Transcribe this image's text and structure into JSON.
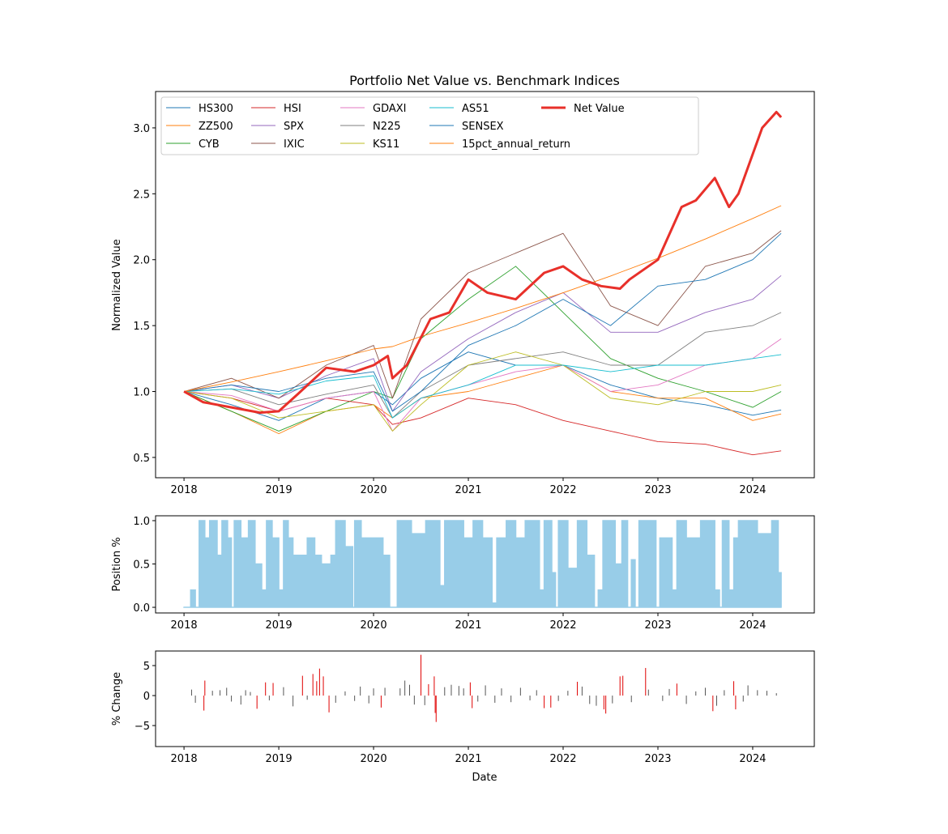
{
  "chart_data": [
    {
      "type": "line",
      "title": "Portfolio Net Value vs. Benchmark Indices",
      "xlabel": "",
      "ylabel": "Normalized Value",
      "xlim": [
        2017.7,
        2024.65
      ],
      "ylim": [
        0.346,
        3.276
      ],
      "xticks": [
        2018,
        2019,
        2020,
        2021,
        2022,
        2023,
        2024
      ],
      "xtick_labels": [
        "2018",
        "2019",
        "2020",
        "2021",
        "2022",
        "2023",
        "2024"
      ],
      "yticks": [
        0.5,
        1.0,
        1.5,
        2.0,
        2.5,
        3.0
      ],
      "ytick_labels": [
        "0.5",
        "1.0",
        "1.5",
        "2.0",
        "2.5",
        "3.0"
      ],
      "grid": false,
      "legend_position": "top-left",
      "legend_columns": 5,
      "x": [
        2018.0,
        2018.5,
        2019.0,
        2019.5,
        2020.0,
        2020.2,
        2020.5,
        2021.0,
        2021.5,
        2022.0,
        2022.5,
        2023.0,
        2023.5,
        2024.0,
        2024.3
      ],
      "series": [
        {
          "name": "HS300",
          "color": "#1f77b4",
          "values": [
            1.0,
            0.9,
            0.78,
            0.95,
            1.0,
            0.9,
            1.1,
            1.3,
            1.2,
            1.2,
            1.05,
            0.95,
            0.9,
            0.82,
            0.86
          ]
        },
        {
          "name": "ZZ500",
          "color": "#ff7f0e",
          "values": [
            1.0,
            0.85,
            0.68,
            0.85,
            0.9,
            0.8,
            0.95,
            1.0,
            1.1,
            1.2,
            1.0,
            0.95,
            0.95,
            0.78,
            0.83
          ]
        },
        {
          "name": "CYB",
          "color": "#2ca02c",
          "values": [
            1.0,
            0.85,
            0.7,
            0.85,
            1.0,
            0.95,
            1.4,
            1.7,
            1.95,
            1.6,
            1.25,
            1.1,
            1.0,
            0.88,
            1.0
          ]
        },
        {
          "name": "HSI",
          "color": "#d62728",
          "values": [
            1.0,
            0.95,
            0.85,
            0.95,
            0.9,
            0.75,
            0.8,
            0.95,
            0.9,
            0.78,
            0.7,
            0.62,
            0.6,
            0.52,
            0.55
          ]
        },
        {
          "name": "SPX",
          "color": "#9467bd",
          "values": [
            1.0,
            1.05,
            0.95,
            1.12,
            1.25,
            0.85,
            1.15,
            1.4,
            1.6,
            1.75,
            1.45,
            1.45,
            1.6,
            1.7,
            1.88
          ]
        },
        {
          "name": "IXIC",
          "color": "#8c564b",
          "values": [
            1.0,
            1.1,
            0.95,
            1.2,
            1.35,
            0.95,
            1.55,
            1.9,
            2.05,
            2.2,
            1.65,
            1.5,
            1.95,
            2.05,
            2.22
          ]
        },
        {
          "name": "GDAXI",
          "color": "#e377c2",
          "values": [
            1.0,
            0.97,
            0.85,
            0.95,
            1.0,
            0.7,
            0.95,
            1.05,
            1.15,
            1.2,
            1.0,
            1.05,
            1.2,
            1.25,
            1.4
          ]
        },
        {
          "name": "N225",
          "color": "#7f7f7f",
          "values": [
            1.0,
            1.02,
            0.9,
            0.98,
            1.05,
            0.8,
            1.0,
            1.2,
            1.25,
            1.3,
            1.2,
            1.2,
            1.45,
            1.5,
            1.6
          ]
        },
        {
          "name": "KS11",
          "color": "#bcbd22",
          "values": [
            1.0,
            0.95,
            0.8,
            0.85,
            0.9,
            0.7,
            0.9,
            1.2,
            1.3,
            1.2,
            0.95,
            0.9,
            1.0,
            1.0,
            1.05
          ]
        },
        {
          "name": "AS51",
          "color": "#17becf",
          "values": [
            1.0,
            1.02,
            0.98,
            1.08,
            1.12,
            0.8,
            0.95,
            1.05,
            1.2,
            1.2,
            1.15,
            1.2,
            1.2,
            1.25,
            1.28
          ]
        },
        {
          "name": "SENSEX",
          "color": "#1f77b4",
          "values": [
            1.0,
            1.05,
            1.0,
            1.1,
            1.15,
            0.85,
            1.0,
            1.35,
            1.5,
            1.7,
            1.5,
            1.8,
            1.85,
            2.0,
            2.2
          ]
        },
        {
          "name": "15pct_annual_return",
          "color": "#ff7f0e",
          "values": [
            1.0,
            1.072,
            1.15,
            1.233,
            1.3225,
            1.341,
            1.418,
            1.521,
            1.631,
            1.749,
            1.876,
            2.011,
            2.157,
            2.313,
            2.41
          ]
        },
        {
          "name": "Net Value",
          "color": "#e8302a",
          "bold": true,
          "x": [
            2018.0,
            2018.2,
            2018.5,
            2018.8,
            2019.0,
            2019.2,
            2019.5,
            2019.8,
            2020.0,
            2020.15,
            2020.2,
            2020.35,
            2020.6,
            2020.8,
            2021.0,
            2021.2,
            2021.5,
            2021.8,
            2022.0,
            2022.2,
            2022.4,
            2022.6,
            2022.7,
            2023.0,
            2023.25,
            2023.4,
            2023.6,
            2023.75,
            2023.85,
            2024.1,
            2024.25,
            2024.3
          ],
          "values": [
            1.0,
            0.92,
            0.88,
            0.84,
            0.85,
            0.98,
            1.18,
            1.15,
            1.2,
            1.27,
            1.1,
            1.2,
            1.55,
            1.6,
            1.85,
            1.75,
            1.7,
            1.9,
            1.95,
            1.85,
            1.8,
            1.78,
            1.85,
            2.0,
            2.4,
            2.45,
            2.62,
            2.4,
            2.5,
            3.0,
            3.12,
            3.08
          ]
        }
      ]
    },
    {
      "type": "area",
      "ylabel": "Position %",
      "xlim": [
        2017.7,
        2024.65
      ],
      "ylim": [
        -0.065,
        1.056
      ],
      "yticks": [
        0.0,
        0.5,
        1.0
      ],
      "ytick_labels": [
        "0.0",
        "0.5",
        "1.0"
      ],
      "xtick_labels": [
        "2018",
        "2019",
        "2020",
        "2021",
        "2022",
        "2023",
        "2024"
      ],
      "color": "#98cde8",
      "steps": [
        [
          2018.0,
          0
        ],
        [
          2018.07,
          0.2
        ],
        [
          2018.12,
          0
        ],
        [
          2018.16,
          1.0
        ],
        [
          2018.22,
          0.8
        ],
        [
          2018.27,
          1.0
        ],
        [
          2018.35,
          0.6
        ],
        [
          2018.4,
          1.0
        ],
        [
          2018.46,
          0.8
        ],
        [
          2018.5,
          0
        ],
        [
          2018.53,
          1.0
        ],
        [
          2018.6,
          0.8
        ],
        [
          2018.68,
          1.0
        ],
        [
          2018.75,
          0.5
        ],
        [
          2018.82,
          0.2
        ],
        [
          2018.87,
          1.0
        ],
        [
          2018.93,
          0.8
        ],
        [
          2019.0,
          0.2
        ],
        [
          2019.05,
          1.0
        ],
        [
          2019.1,
          0.8
        ],
        [
          2019.15,
          0.6
        ],
        [
          2019.3,
          0.8
        ],
        [
          2019.38,
          0.6
        ],
        [
          2019.45,
          0.5
        ],
        [
          2019.55,
          0.6
        ],
        [
          2019.6,
          1.0
        ],
        [
          2019.7,
          0.7
        ],
        [
          2019.78,
          0
        ],
        [
          2019.8,
          1.0
        ],
        [
          2019.87,
          0.8
        ],
        [
          2020.1,
          0.6
        ],
        [
          2020.17,
          0
        ],
        [
          2020.25,
          1.0
        ],
        [
          2020.4,
          0.85
        ],
        [
          2020.55,
          1.0
        ],
        [
          2020.7,
          0.25
        ],
        [
          2020.75,
          1.0
        ],
        [
          2020.95,
          0.8
        ],
        [
          2021.05,
          1.0
        ],
        [
          2021.15,
          0.8
        ],
        [
          2021.25,
          0.05
        ],
        [
          2021.3,
          0.8
        ],
        [
          2021.4,
          1.0
        ],
        [
          2021.5,
          0.8
        ],
        [
          2021.6,
          1.0
        ],
        [
          2021.75,
          0.2
        ],
        [
          2021.8,
          1.0
        ],
        [
          2021.88,
          0.4
        ],
        [
          2021.92,
          0
        ],
        [
          2021.95,
          1.0
        ],
        [
          2022.05,
          0.45
        ],
        [
          2022.15,
          1.0
        ],
        [
          2022.25,
          0.6
        ],
        [
          2022.33,
          0
        ],
        [
          2022.37,
          0.2
        ],
        [
          2022.42,
          1.0
        ],
        [
          2022.55,
          0.5
        ],
        [
          2022.62,
          1.0
        ],
        [
          2022.68,
          0
        ],
        [
          2022.72,
          0.55
        ],
        [
          2022.76,
          0
        ],
        [
          2022.8,
          1.0
        ],
        [
          2022.98,
          0
        ],
        [
          2023.02,
          0.8
        ],
        [
          2023.15,
          0.2
        ],
        [
          2023.2,
          1.0
        ],
        [
          2023.3,
          0.8
        ],
        [
          2023.45,
          1.0
        ],
        [
          2023.6,
          0.2
        ],
        [
          2023.65,
          0
        ],
        [
          2023.68,
          1.0
        ],
        [
          2023.75,
          0.2
        ],
        [
          2023.8,
          0.8
        ],
        [
          2023.85,
          1.0
        ],
        [
          2024.05,
          0.85
        ],
        [
          2024.2,
          1.0
        ],
        [
          2024.27,
          0.4
        ],
        [
          2024.3,
          0
        ]
      ]
    },
    {
      "type": "bar",
      "xlabel": "Date",
      "ylabel": "% Change",
      "xlim": [
        2017.7,
        2024.65
      ],
      "ylim": [
        -8.5,
        7.43
      ],
      "yticks": [
        -5,
        0,
        5
      ],
      "ytick_labels": [
        "−5",
        "0",
        "5"
      ],
      "xtick_labels": [
        "2018",
        "2019",
        "2020",
        "2021",
        "2022",
        "2023",
        "2024"
      ],
      "normal_color": "#555555",
      "highlight_color": "#e00000",
      "bars": [
        [
          2018.08,
          1.0,
          0
        ],
        [
          2018.12,
          -1.2,
          0
        ],
        [
          2018.21,
          -2.5,
          1
        ],
        [
          2018.22,
          2.5,
          1
        ],
        [
          2018.3,
          0.8,
          0
        ],
        [
          2018.38,
          0.9,
          0
        ],
        [
          2018.45,
          1.3,
          0
        ],
        [
          2018.5,
          -1.0,
          0
        ],
        [
          2018.6,
          -1.5,
          0
        ],
        [
          2018.65,
          0.9,
          0
        ],
        [
          2018.7,
          0.6,
          0
        ],
        [
          2018.77,
          -2.2,
          1
        ],
        [
          2018.86,
          2.2,
          1
        ],
        [
          2018.9,
          -0.8,
          0
        ],
        [
          2018.94,
          2.1,
          1
        ],
        [
          2019.05,
          1.4,
          0
        ],
        [
          2019.15,
          -1.8,
          0
        ],
        [
          2019.25,
          3.3,
          1
        ],
        [
          2019.3,
          -0.7,
          0
        ],
        [
          2019.36,
          3.6,
          1
        ],
        [
          2019.4,
          2.4,
          1
        ],
        [
          2019.43,
          4.5,
          1
        ],
        [
          2019.47,
          3.2,
          1
        ],
        [
          2019.53,
          -2.8,
          1
        ],
        [
          2019.6,
          -1.2,
          0
        ],
        [
          2019.7,
          0.7,
          0
        ],
        [
          2019.8,
          -0.9,
          0
        ],
        [
          2019.86,
          1.5,
          0
        ],
        [
          2019.95,
          -1.3,
          0
        ],
        [
          2020.0,
          1.2,
          0
        ],
        [
          2020.08,
          -2.0,
          1
        ],
        [
          2020.12,
          1.3,
          0
        ],
        [
          2020.28,
          1.2,
          0
        ],
        [
          2020.33,
          2.5,
          0
        ],
        [
          2020.38,
          1.8,
          0
        ],
        [
          2020.43,
          -1.5,
          0
        ],
        [
          2020.5,
          6.8,
          1
        ],
        [
          2020.54,
          -1.6,
          0
        ],
        [
          2020.58,
          1.9,
          1
        ],
        [
          2020.64,
          3.2,
          1
        ],
        [
          2020.65,
          -2.9,
          1
        ],
        [
          2020.66,
          -4.4,
          1
        ],
        [
          2020.75,
          1.4,
          0
        ],
        [
          2020.82,
          1.8,
          0
        ],
        [
          2020.9,
          1.6,
          0
        ],
        [
          2020.95,
          1.2,
          0
        ],
        [
          2021.02,
          2.2,
          1
        ],
        [
          2021.04,
          -2.1,
          1
        ],
        [
          2021.1,
          -1.0,
          0
        ],
        [
          2021.18,
          1.7,
          0
        ],
        [
          2021.28,
          -1.2,
          0
        ],
        [
          2021.35,
          1.2,
          0
        ],
        [
          2021.45,
          -1.1,
          0
        ],
        [
          2021.55,
          1.3,
          0
        ],
        [
          2021.65,
          -0.8,
          0
        ],
        [
          2021.72,
          0.9,
          0
        ],
        [
          2021.8,
          -2.1,
          1
        ],
        [
          2021.87,
          -2.0,
          1
        ],
        [
          2021.95,
          -0.9,
          0
        ],
        [
          2022.05,
          0.8,
          0
        ],
        [
          2022.15,
          2.3,
          1
        ],
        [
          2022.2,
          1.5,
          0
        ],
        [
          2022.28,
          -1.4,
          0
        ],
        [
          2022.35,
          -1.7,
          0
        ],
        [
          2022.43,
          -2.3,
          1
        ],
        [
          2022.45,
          -3.0,
          1
        ],
        [
          2022.52,
          -1.3,
          0
        ],
        [
          2022.6,
          3.2,
          1
        ],
        [
          2022.63,
          3.3,
          1
        ],
        [
          2022.72,
          -1.1,
          0
        ],
        [
          2022.87,
          4.6,
          1
        ],
        [
          2022.9,
          1.0,
          0
        ],
        [
          2023.05,
          -0.9,
          0
        ],
        [
          2023.12,
          1.1,
          0
        ],
        [
          2023.2,
          2.0,
          1
        ],
        [
          2023.3,
          -1.4,
          0
        ],
        [
          2023.4,
          0.7,
          0
        ],
        [
          2023.5,
          1.3,
          0
        ],
        [
          2023.58,
          -2.6,
          1
        ],
        [
          2023.62,
          -1.7,
          0
        ],
        [
          2023.7,
          0.9,
          0
        ],
        [
          2023.8,
          2.4,
          1
        ],
        [
          2023.82,
          -2.3,
          1
        ],
        [
          2023.9,
          -1.0,
          0
        ],
        [
          2023.95,
          1.7,
          0
        ],
        [
          2024.05,
          0.9,
          0
        ],
        [
          2024.15,
          0.8,
          0
        ],
        [
          2024.25,
          0.4,
          0
        ]
      ]
    }
  ]
}
